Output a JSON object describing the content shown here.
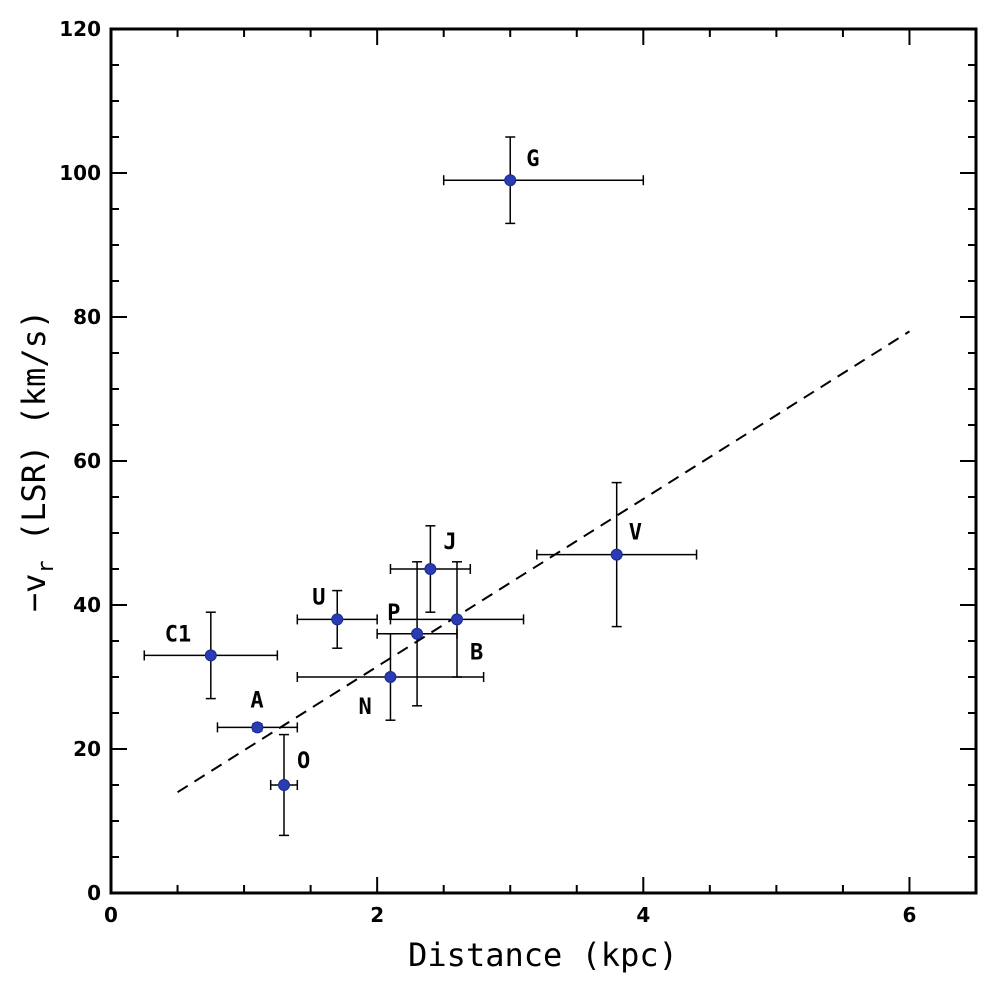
{
  "chart_data": {
    "type": "scatter",
    "title": "",
    "xlabel": "Distance (kpc)",
    "ylabel": "−v",
    "ylabel_sub": "r",
    "ylabel_tail": " (LSR) (km/s)",
    "xlim": [
      0,
      6.5
    ],
    "ylim": [
      0,
      120
    ],
    "x_ticks": [
      0,
      2,
      4,
      6
    ],
    "y_ticks": [
      0,
      20,
      40,
      60,
      80,
      100,
      120
    ],
    "x_minor_step": 0.5,
    "y_minor_step": 5,
    "grid": false,
    "marker_color": "#2a3cb4",
    "points": [
      {
        "label": "G",
        "x": 3.0,
        "y": 99,
        "xerr": [
          0.5,
          1.0
        ],
        "yerr": [
          6,
          6
        ]
      },
      {
        "label": "V",
        "x": 3.8,
        "y": 47,
        "xerr": [
          0.6,
          0.6
        ],
        "yerr": [
          10,
          10
        ]
      },
      {
        "label": "J",
        "x": 2.4,
        "y": 45,
        "xerr": [
          0.3,
          0.3
        ],
        "yerr": [
          6,
          6
        ]
      },
      {
        "label": "U",
        "x": 1.7,
        "y": 38,
        "xerr": [
          0.3,
          0.3
        ],
        "yerr": [
          4,
          4
        ]
      },
      {
        "label": "P",
        "x": 2.3,
        "y": 36,
        "xerr": [
          0.3,
          0.3
        ],
        "yerr": [
          10,
          10
        ]
      },
      {
        "label": "B",
        "x": 2.6,
        "y": 38,
        "xerr": [
          0.5,
          0.5
        ],
        "yerr": [
          8,
          8
        ]
      },
      {
        "label": "C1",
        "x": 0.75,
        "y": 33,
        "xerr": [
          0.5,
          0.5
        ],
        "yerr": [
          6,
          6
        ]
      },
      {
        "label": "N",
        "x": 2.1,
        "y": 30,
        "xerr": [
          0.7,
          0.7
        ],
        "yerr": [
          6,
          6
        ]
      },
      {
        "label": "A",
        "x": 1.1,
        "y": 23,
        "xerr": [
          0.3,
          0.3
        ],
        "yerr": [
          0.5,
          0.5
        ]
      },
      {
        "label": "O",
        "x": 1.3,
        "y": 15,
        "xerr": [
          0.1,
          0.1
        ],
        "yerr": [
          7,
          7
        ]
      }
    ],
    "fit_line": {
      "style": "dashed",
      "x": [
        0.5,
        6.0
      ],
      "y": [
        14,
        78
      ]
    }
  }
}
